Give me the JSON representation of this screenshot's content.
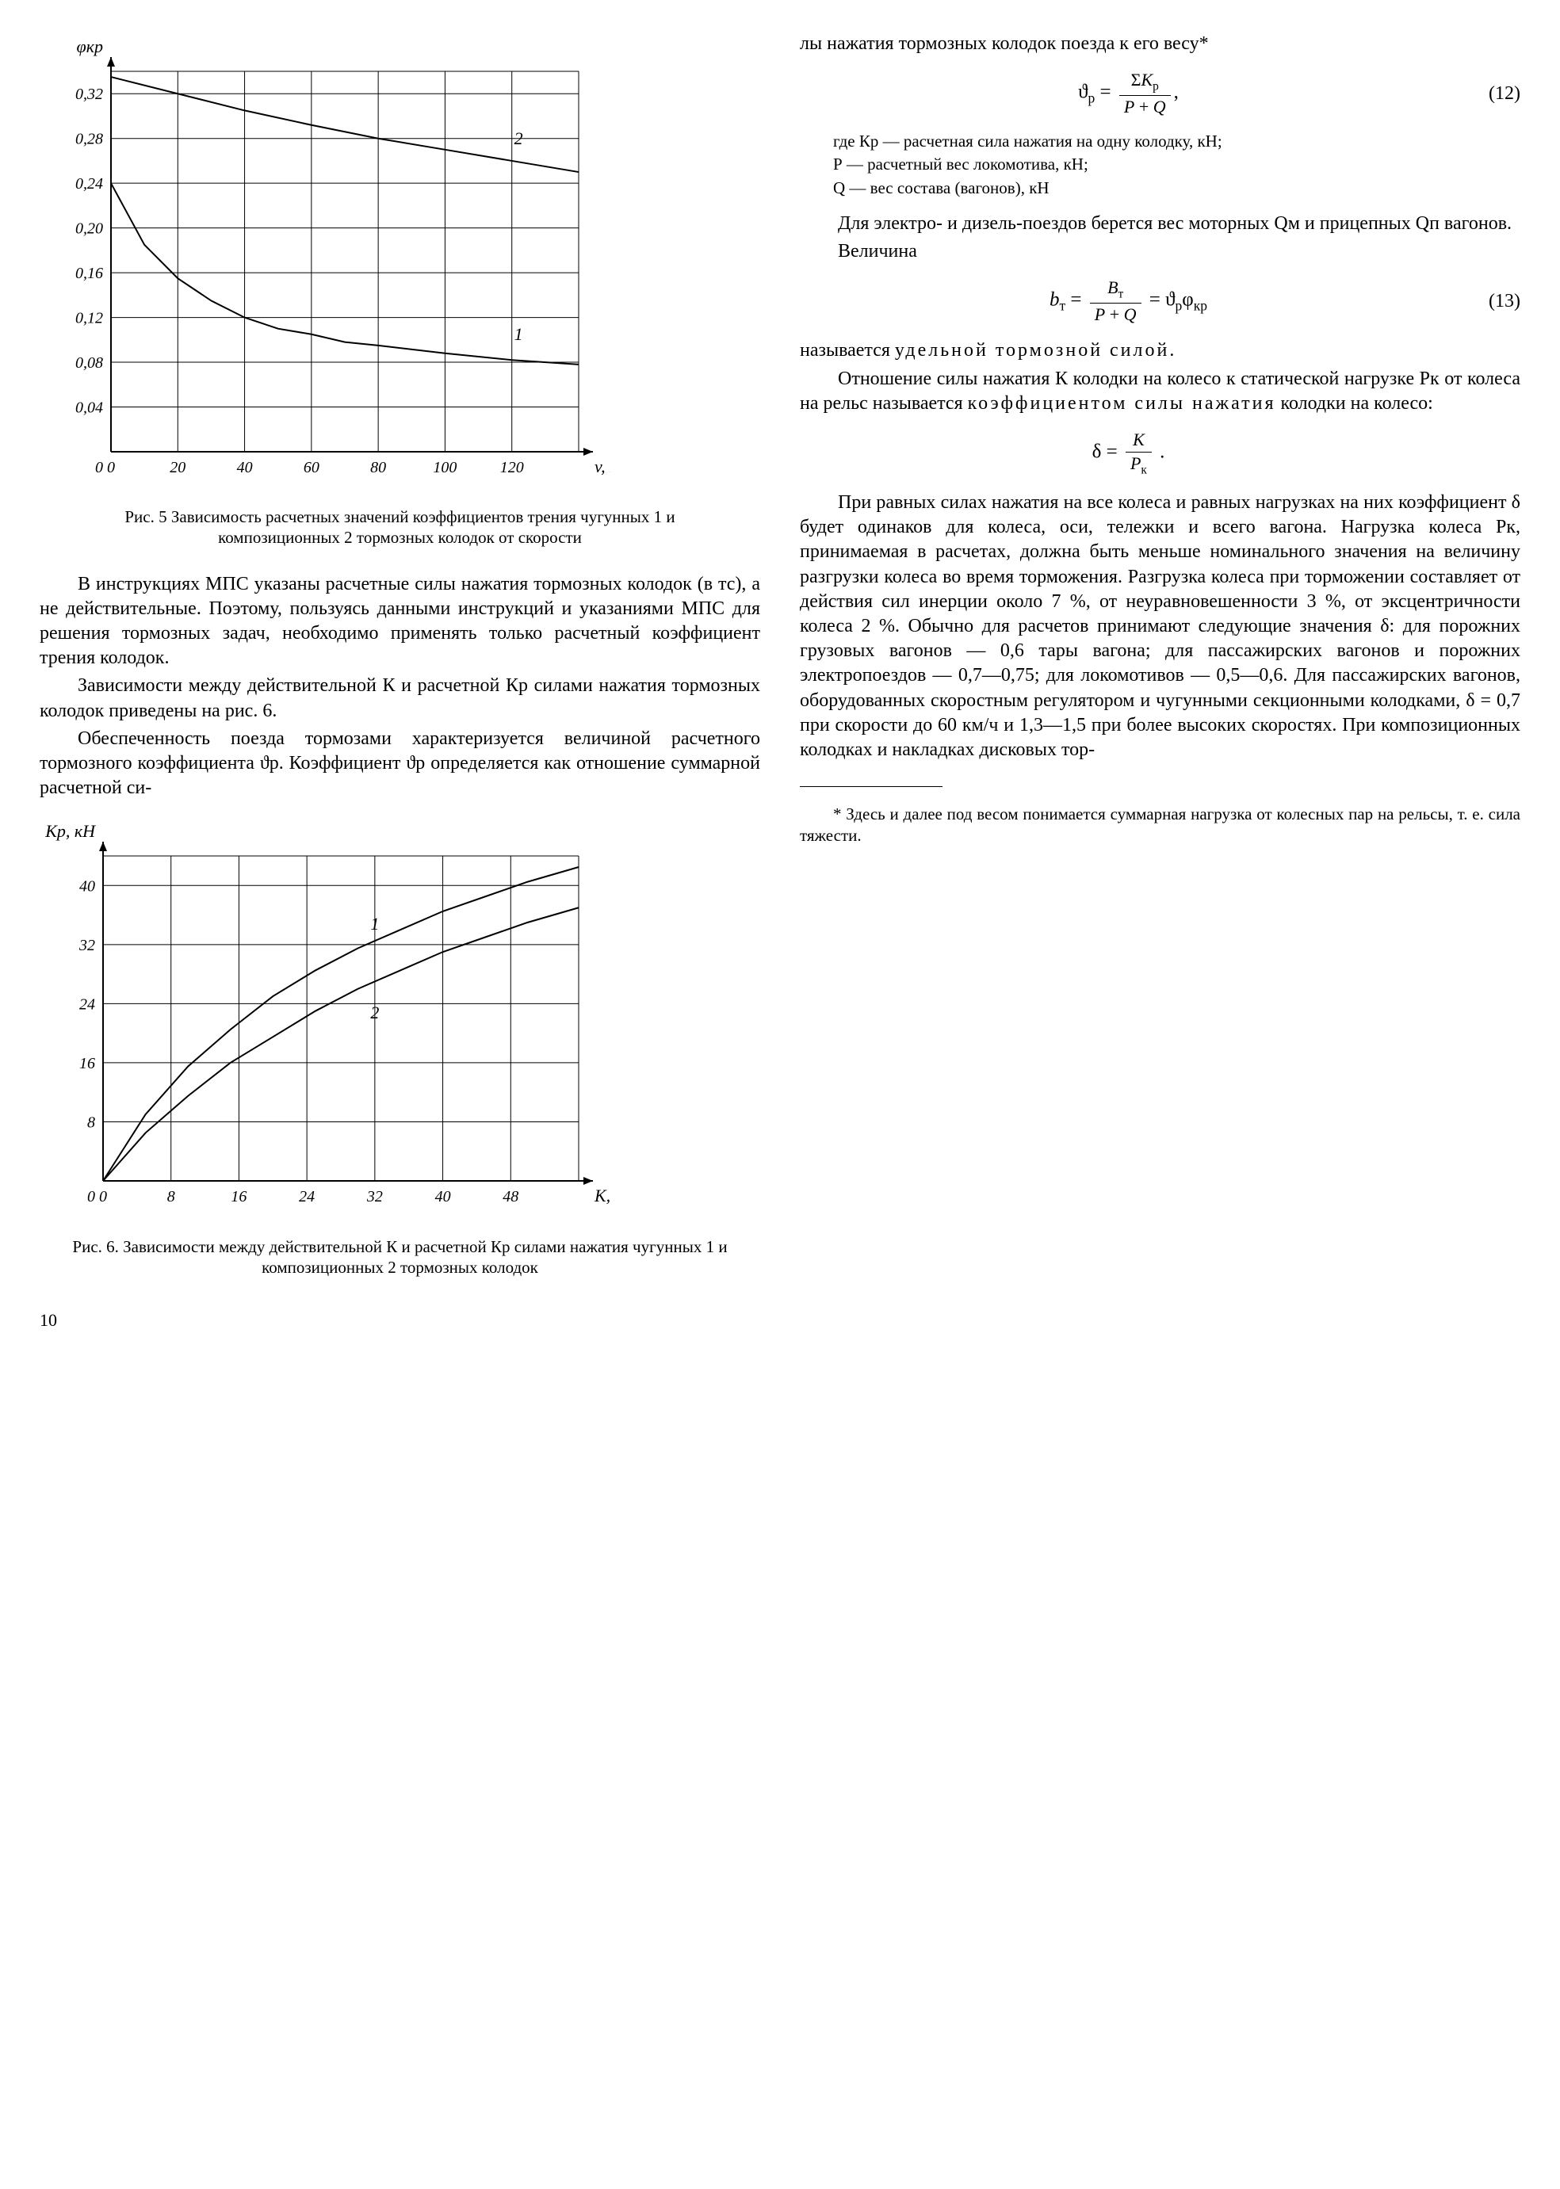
{
  "chart1": {
    "type": "line",
    "xlabel": "v, км/ч",
    "ylabel": "φкр",
    "xlim": [
      0,
      140
    ],
    "ylim": [
      0,
      0.34
    ],
    "xticks": [
      0,
      20,
      40,
      60,
      80,
      100,
      120
    ],
    "yticks": [
      0.04,
      0.08,
      0.12,
      0.16,
      0.2,
      0.24,
      0.28,
      0.32
    ],
    "ytick_labels": [
      "0,04",
      "0,08",
      "0,12",
      "0,16",
      "0,20",
      "0,24",
      "0,28",
      "0,32"
    ],
    "series": [
      {
        "name": "1",
        "x": [
          0,
          10,
          20,
          30,
          40,
          50,
          60,
          70,
          80,
          100,
          120,
          140
        ],
        "y": [
          0.24,
          0.185,
          0.155,
          0.135,
          0.12,
          0.11,
          0.105,
          0.098,
          0.095,
          0.088,
          0.082,
          0.078
        ]
      },
      {
        "name": "2",
        "x": [
          0,
          20,
          40,
          60,
          80,
          100,
          120,
          140
        ],
        "y": [
          0.335,
          0.32,
          0.305,
          0.292,
          0.28,
          0.27,
          0.26,
          0.25
        ]
      }
    ],
    "line_color": "#000000",
    "grid_color": "#000000",
    "linewidth": 2,
    "label_fontsize": 20,
    "title_fontsize": 20,
    "caption": "Рис. 5 Зависимость расчетных значений коэффициентов трения чугунных 1 и композиционных 2 тормозных колодок от скорости"
  },
  "chart2": {
    "type": "line",
    "xlabel": "К, кН",
    "ylabel": "Кр, кН",
    "xlim": [
      0,
      56
    ],
    "ylim": [
      0,
      44
    ],
    "xticks": [
      0,
      8,
      16,
      24,
      32,
      40,
      48
    ],
    "yticks": [
      8,
      16,
      24,
      32,
      40
    ],
    "series": [
      {
        "name": "1",
        "x": [
          0,
          5,
          10,
          15,
          20,
          25,
          30,
          35,
          40,
          45,
          50,
          56
        ],
        "y": [
          0,
          9,
          15.5,
          20.5,
          25,
          28.5,
          31.5,
          34,
          36.5,
          38.5,
          40.5,
          42.5
        ]
      },
      {
        "name": "2",
        "x": [
          0,
          5,
          10,
          15,
          20,
          25,
          30,
          35,
          40,
          45,
          50,
          56
        ],
        "y": [
          0,
          6.5,
          11.5,
          16,
          19.5,
          23,
          26,
          28.5,
          31,
          33,
          35,
          37
        ]
      }
    ],
    "line_color": "#000000",
    "grid_color": "#000000",
    "linewidth": 2,
    "label_fontsize": 20,
    "caption": "Рис. 6. Зависимости между действительной К и расчетной Кр силами нажатия чугунных 1 и композиционных 2 тормозных колодок"
  },
  "left": {
    "p1": "В инструкциях МПС указаны рас­четные силы нажатия тормозных колодок (в тс), а не действительные. Поэтому, пользуясь данными инструкций и указаниями МПС для решения тормозных задач, необхо­димо применять только расчетный коэффициент трения колодок.",
    "p2": "Зависимости между действитель­ной К и расчетной Кр силами нажа­тия тормозных колодок приведены на рис. 6.",
    "p3": "Обеспеченность поезда тормоза­ми характеризуется величиной рас­четного тормозного коэффициента ϑр. Коэффициент ϑр определяется как отношение суммарной расчетной си-"
  },
  "right": {
    "p1": "лы нажатия тормозных колодок поезда к его весу*",
    "eq12": "(12)",
    "def_intro": "где Кр — расчетная сила нажатия на одну колодку, кН;",
    "def_P": "Р  —  расчетный вес локомотива, кН;",
    "def_Q": "Q  —  вес состава (вагонов), кН",
    "p2": "Для электро- и дизель-поездов берется вес моторных Qм и прицеп­ных Qп вагонов.",
    "p3": "Величина",
    "eq13": "(13)",
    "p4a": "называется ",
    "p4b": "удельной тормоз­ной силой.",
    "p5a": "Отношение силы нажатия К ко­лодки на колесо к статической на­грузке Рк от колеса на рельс назы­вается ",
    "p5b": "коэффициентом силы нажатия",
    "p5c": " колодки на колесо:",
    "p6": "При равных силах нажатия на все колеса и равных нагрузках на них коэффициент δ будет одинаков для колеса, оси, тележки и всего вагона. Нагрузка колеса Рк, принимаемая в расчетах, должна быть меньше номинального значения на величину разгрузки колеса во время торможе­ния. Разгрузка колеса при торможе­нии составляет от действия сил инерции около 7 %, от неуравнове­шенности 3 %, от эксцентричности колеса 2 %. Обычно для расчетов принимают следующие значения δ: для порожних грузовых вагонов — 0,6 тары вагона; для пассажирских вагонов и порожних электропоез­дов — 0,7—0,75; для локомотивов — 0,5—0,6. Для пассажирских вагонов, оборудованных скоростным регуля­тором и чугунными секционными колодками, δ = 0,7 при скорости до 60 км/ч и 1,3—1,5 при более высоких скоростях. При композиционных ко­лодках и накладках дисковых тор-",
    "footnote": "* Здесь и далее под весом понимается суммарная нагрузка от колесных пар на рельсы, т. е. сила тяжести."
  },
  "page_number": "10"
}
